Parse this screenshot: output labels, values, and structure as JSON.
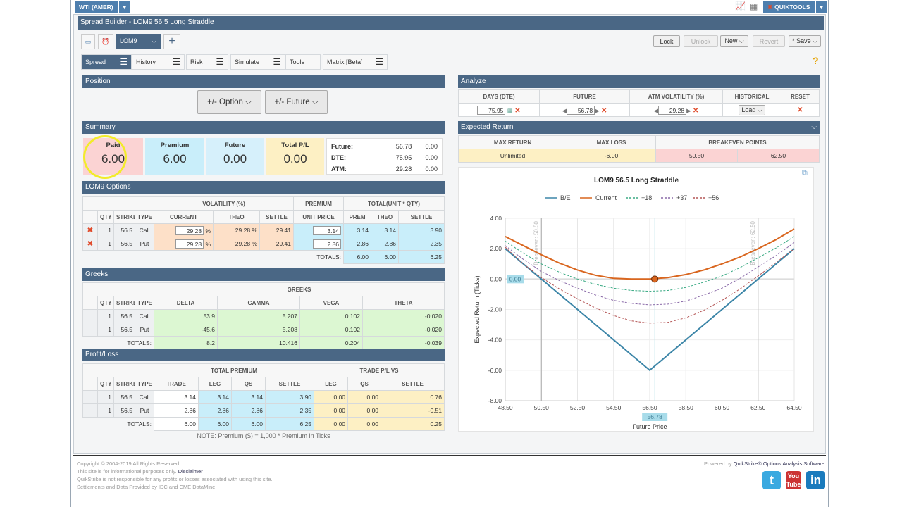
{
  "topbar": {
    "exchange": "WTI (AMER)",
    "quiktools": "QUIKTOOLS"
  },
  "title": "Spread Builder - LOM9 56.5 Long Straddle",
  "toolbar": {
    "symbol": "LOM9",
    "add": "+",
    "lock": "Lock",
    "unlock": "Unlock",
    "new": "New ⌵",
    "revert": "Revert",
    "save": "* Save ⌵",
    "help": "?"
  },
  "tabs": [
    {
      "label": "Spread"
    },
    {
      "label": "History"
    },
    {
      "label": "Risk"
    },
    {
      "label": "Simulate"
    },
    {
      "label": "Tools"
    },
    {
      "label": "Matrix [Beta]"
    }
  ],
  "position": {
    "header": "Position",
    "option_btn": "+/- Option ⌵",
    "future_btn": "+/- Future ⌵"
  },
  "summary": {
    "header": "Summary",
    "boxes": [
      {
        "label": "Paid",
        "value": "6.00"
      },
      {
        "label": "Premium",
        "value": "6.00"
      },
      {
        "label": "Future",
        "value": "0.00"
      },
      {
        "label": "Total P/L",
        "value": "0.00"
      }
    ],
    "info": [
      {
        "label": "Future:",
        "value": "56.78",
        "change": "0.00"
      },
      {
        "label": "DTE:",
        "value": "75.95",
        "change": "0.00"
      },
      {
        "label": "ATM:",
        "value": "29.28",
        "change": "0.00"
      }
    ]
  },
  "options": {
    "header": "LOM9 Options",
    "group_headers": [
      "VOLATILITY (%)",
      "PREMIUM",
      "TOTAL(UNIT * QTY)"
    ],
    "columns": [
      "QTY",
      "STRIKE",
      "TYPE",
      "CURRENT",
      "THEO",
      "SETTLE",
      "UNIT PRICE",
      "PREM",
      "THEO",
      "SETTLE"
    ],
    "rows": [
      {
        "qty": "1",
        "strike": "56.5",
        "type": "Call",
        "current": "29.28",
        "theo": "29.28 %",
        "settle": "29.41",
        "unit": "3.14",
        "prem": "3.14",
        "ttheo": "3.14",
        "tsettle": "3.90"
      },
      {
        "qty": "1",
        "strike": "56.5",
        "type": "Put",
        "current": "29.28",
        "theo": "29.28 %",
        "settle": "29.41",
        "unit": "2.86",
        "prem": "2.86",
        "ttheo": "2.86",
        "tsettle": "2.35"
      }
    ],
    "totals_label": "TOTALS:",
    "totals": [
      "6.00",
      "6.00",
      "6.25"
    ],
    "pct": "%"
  },
  "greeks": {
    "header": "Greeks",
    "group": "GREEKS",
    "columns": [
      "QTY",
      "STRIKE",
      "TYPE",
      "DELTA",
      "GAMMA",
      "VEGA",
      "THETA"
    ],
    "rows": [
      {
        "qty": "1",
        "strike": "56.5",
        "type": "Call",
        "delta": "53.9",
        "gamma": "5.207",
        "vega": "0.102",
        "theta": "-0.020"
      },
      {
        "qty": "1",
        "strike": "56.5",
        "type": "Put",
        "delta": "-45.6",
        "gamma": "5.208",
        "vega": "0.102",
        "theta": "-0.020"
      }
    ],
    "totals_label": "TOTALS:",
    "totals": [
      "8.2",
      "10.416",
      "0.204",
      "-0.039"
    ]
  },
  "pl": {
    "header": "Profit/Loss",
    "groups": [
      "TOTAL PREMIUM",
      "TRADE P/L VS"
    ],
    "columns": [
      "QTY",
      "STRIKE",
      "TYPE",
      "TRADE",
      "LEG",
      "QS",
      "SETTLE",
      "LEG",
      "QS",
      "SETTLE"
    ],
    "rows": [
      {
        "qty": "1",
        "strike": "56.5",
        "type": "Call",
        "vals": [
          "3.14",
          "3.14",
          "3.14",
          "3.90",
          "0.00",
          "0.00",
          "0.76"
        ]
      },
      {
        "qty": "1",
        "strike": "56.5",
        "type": "Put",
        "vals": [
          "2.86",
          "2.86",
          "2.86",
          "2.35",
          "0.00",
          "0.00",
          "-0.51"
        ]
      }
    ],
    "totals_label": "TOTALS:",
    "totals": [
      "6.00",
      "6.00",
      "6.00",
      "6.25",
      "0.00",
      "0.00",
      "0.25"
    ],
    "note": "NOTE: Premium ($) = 1,000 * Premium in Ticks"
  },
  "analyze": {
    "header": "Analyze",
    "columns": [
      "DAYS (DTE)",
      "FUTURE",
      "ATM VOLATILITY (%)",
      "HISTORICAL",
      "RESET"
    ],
    "dte": "75.95",
    "future": "56.78",
    "atm_vol": "29.28",
    "load": "Load ⌵"
  },
  "expected": {
    "header": "Expected Return",
    "columns": [
      "MAX RETURN",
      "MAX LOSS",
      "BREAKEVEN POINTS"
    ],
    "max_return": "Unlimited",
    "max_loss": "-6.00",
    "breakevens": [
      "50.50",
      "62.50"
    ]
  },
  "chart_data": {
    "type": "line",
    "title": "LOM9 56.5 Long Straddle",
    "xlabel": "Future Price",
    "ylabel": "Expected Return (Ticks)",
    "xlim": [
      48.5,
      64.5
    ],
    "ylim": [
      -8,
      4
    ],
    "xticks": [
      "48.50",
      "50.50",
      "52.50",
      "54.50",
      "56.50",
      "58.50",
      "60.50",
      "62.50",
      "64.50"
    ],
    "yticks": [
      "4.00",
      "2.00",
      "0.00",
      "-2.00",
      "-4.00",
      "-6.00",
      "-8.00"
    ],
    "grid": true,
    "legend": "top",
    "current_x": "56.78",
    "current_y": "0.00",
    "breakeven_labels": [
      "Breakeven: 50.50",
      "Breakeven: 62.50"
    ],
    "breakeven_x": [
      50.5,
      62.5
    ],
    "series": [
      {
        "name": "B/E",
        "color": "#3d86a8",
        "dash": false,
        "x": [
          48.5,
          56.5,
          64.5
        ],
        "y": [
          2,
          -6,
          2
        ]
      },
      {
        "name": "Current",
        "color": "#d9661f",
        "dash": false,
        "x": [
          48.5,
          49.5,
          50.5,
          51.5,
          52.5,
          53.5,
          54.5,
          55.5,
          56.5,
          57.5,
          58.5,
          59.5,
          60.5,
          61.5,
          62.5,
          63.5,
          64.5
        ],
        "y": [
          2.8,
          2.2,
          1.6,
          1.05,
          0.6,
          0.25,
          0.05,
          0,
          0,
          0.1,
          0.3,
          0.6,
          1.0,
          1.45,
          2.0,
          2.6,
          3.3
        ]
      },
      {
        "name": "+18",
        "color": "#3aaa84",
        "dash": true,
        "x": [
          48.5,
          49.5,
          50.5,
          51.5,
          52.5,
          53.5,
          54.5,
          55.5,
          56.5,
          57.5,
          58.5,
          59.5,
          60.5,
          61.5,
          62.5,
          63.5,
          64.5
        ],
        "y": [
          2.5,
          1.7,
          1.0,
          0.45,
          0,
          -0.35,
          -0.6,
          -0.75,
          -0.8,
          -0.75,
          -0.55,
          -0.2,
          0.2,
          0.75,
          1.4,
          2.05,
          2.8
        ]
      },
      {
        "name": "+37",
        "color": "#8a6aa8",
        "dash": true,
        "x": [
          48.5,
          49.5,
          50.5,
          51.5,
          52.5,
          53.5,
          54.5,
          55.5,
          56.5,
          57.5,
          58.5,
          59.5,
          60.5,
          61.5,
          62.5,
          63.5,
          64.5
        ],
        "y": [
          2.2,
          1.3,
          0.5,
          -0.1,
          -0.6,
          -1.05,
          -1.4,
          -1.6,
          -1.7,
          -1.65,
          -1.45,
          -1.05,
          -0.6,
          0.05,
          0.8,
          1.55,
          2.4
        ]
      },
      {
        "name": "+56",
        "color": "#b45555",
        "dash": true,
        "x": [
          48.5,
          49.5,
          50.5,
          51.5,
          52.5,
          53.5,
          54.5,
          55.5,
          56.5,
          57.5,
          58.5,
          59.5,
          60.5,
          61.5,
          62.5,
          63.5,
          64.5
        ],
        "y": [
          2.1,
          1.0,
          0.1,
          -0.65,
          -1.3,
          -1.9,
          -2.4,
          -2.75,
          -2.9,
          -2.85,
          -2.55,
          -2.05,
          -1.4,
          -0.65,
          0.2,
          1.1,
          2.0
        ]
      }
    ]
  },
  "footer": {
    "copyright": "Copyright © 2004-2019 All Rights Reserved.",
    "info": "This site is for informational purposes only.",
    "disclaimer": "Disclaimer",
    "liability": "QuikStrike is not responsible for any profits or losses associated with using this site.",
    "settlements": "Settlements and Data Provided by IDC and CME DataMine.",
    "powered": "Powered by",
    "brand": "QuikStrike® Options Analysis Software"
  }
}
